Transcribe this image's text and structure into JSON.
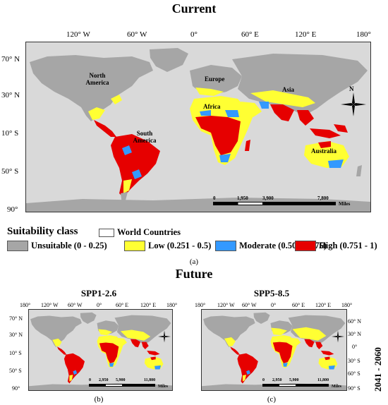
{
  "current": {
    "title": "Current",
    "lon_ticks": [
      "120° W",
      "60° W",
      "0°",
      "60° E",
      "120° E",
      "180°"
    ],
    "lat_ticks": [
      "70° N",
      "30° N",
      "10° S",
      "50° S",
      "90°"
    ],
    "places": {
      "north_america": "North America",
      "europe": "Europe",
      "asia": "Asia",
      "africa": "Africa",
      "south_america": "South America",
      "australia": "Australia"
    },
    "scale": [
      "0",
      "1,950",
      "3,900",
      "7,800",
      "Miles"
    ],
    "compass": "N",
    "caption": "(a)"
  },
  "legend": {
    "title": "Suitability class",
    "countries": "World Countries",
    "classes": [
      {
        "label": "Unsuitable (0 - 0.25)",
        "color": "#a6a6a6"
      },
      {
        "label": "Low (0.251 - 0.5)",
        "color": "#ffff33"
      },
      {
        "label": "Moderate (0.501 - 0.75)",
        "color": "#3399ff"
      },
      {
        "label": "High (0.751 - 1)",
        "color": "#e60000"
      }
    ]
  },
  "future": {
    "title": "Future",
    "period": "2041 - 2060",
    "panels": [
      {
        "subtitle": "SPP1-2.6",
        "lon_ticks": [
          "180°",
          "120° W",
          "60° W",
          "0°",
          "60° E",
          "120° E",
          "180°"
        ],
        "lat_ticks": [
          "70° N",
          "30° N",
          "10° S",
          "50° S",
          "90°"
        ],
        "scale": [
          "0",
          "2,950",
          "5,900",
          "11,800",
          "Miles"
        ],
        "caption": "(b)"
      },
      {
        "subtitle": "SPP5-8.5",
        "lon_ticks": [
          "180°",
          "120° W",
          "60° W",
          "0°",
          "60° E",
          "120° E",
          "180°"
        ],
        "lat_ticks": [
          "60° N",
          "30° N",
          "0°",
          "30° S",
          "60° S",
          "90° S"
        ],
        "scale": [
          "0",
          "2,950",
          "5,900",
          "11,800",
          "Miles"
        ],
        "caption": "(c)"
      }
    ]
  }
}
